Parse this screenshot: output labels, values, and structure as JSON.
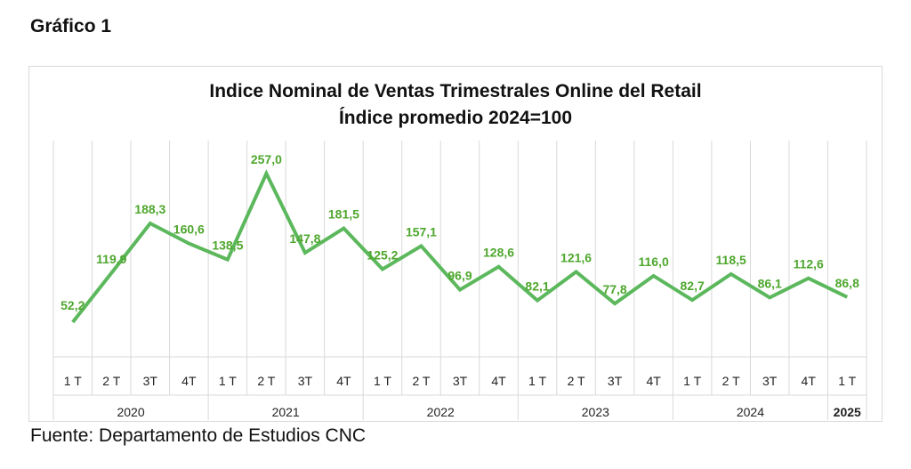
{
  "heading": "Gráfico 1",
  "source": "Fuente: Departamento de Estudios CNC",
  "colors": {
    "line": "#5cb85c",
    "label": "#4ea72e",
    "grid": "#d9d9d9"
  },
  "chart_data": {
    "type": "line",
    "title": "Indice Nominal de Ventas Trimestrales Online del Retail",
    "subtitle": "Índice promedio 2024=100",
    "categories": [
      "1 T",
      "2 T",
      "3T",
      "4T",
      "1 T",
      "2 T",
      "3T",
      "4T",
      "1 T",
      "2 T",
      "3T",
      "4T",
      "1 T",
      "2 T",
      "3T",
      "4T",
      "1 T",
      "2 T",
      "3T",
      "4T",
      "1 T"
    ],
    "years": [
      {
        "label": "2020",
        "count": 4
      },
      {
        "label": "2021",
        "count": 4
      },
      {
        "label": "2022",
        "count": 4
      },
      {
        "label": "2023",
        "count": 4
      },
      {
        "label": "2024",
        "count": 4
      },
      {
        "label": "2025",
        "count": 1
      }
    ],
    "series": [
      {
        "values": [
          52.2,
          119.9,
          188.3,
          160.6,
          138.5,
          257.0,
          147.8,
          181.5,
          125.2,
          157.1,
          96.9,
          128.6,
          82.1,
          121.6,
          77.8,
          116.0,
          82.7,
          118.5,
          86.1,
          112.6,
          86.8
        ],
        "labels": [
          "52,2",
          "119,9",
          "188,3",
          "160,6",
          "138,5",
          "257,0",
          "147,8",
          "181,5",
          "125,2",
          "157,1",
          "96,9",
          "128,6",
          "82,1",
          "121,6",
          "77,8",
          "116,0",
          "82,7",
          "118,5",
          "86,1",
          "112,6",
          "86,8"
        ]
      }
    ],
    "ylim": [
      0,
      300
    ],
    "grid": true,
    "legend": "none"
  }
}
